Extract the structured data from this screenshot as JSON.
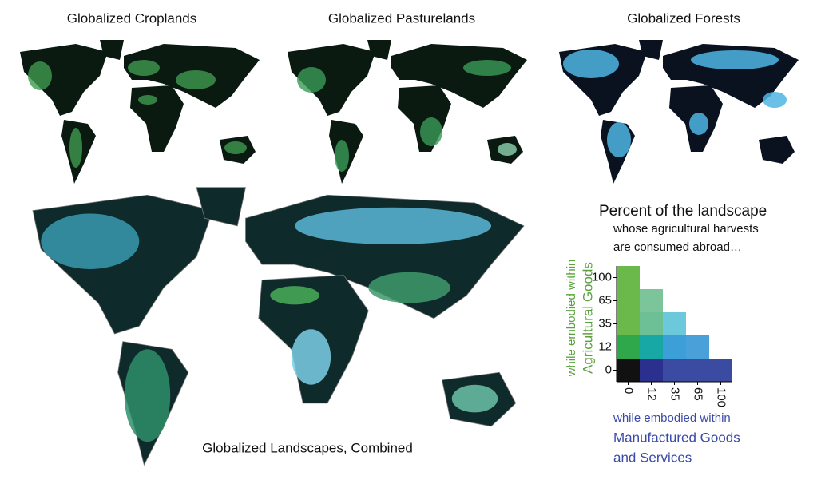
{
  "panels": [
    {
      "title": "Globalized Croplands"
    },
    {
      "title": "Globalized Pasturelands"
    },
    {
      "title": "Globalized Forests"
    },
    {
      "title": "Globalized Landscapes, Combined"
    }
  ],
  "legend": {
    "title": "Percent of the landscape",
    "subtitle": [
      "whose agricultural harvests",
      "are consumed abroad…"
    ],
    "y_label": [
      "while embodied within",
      "Agricultural Goods"
    ],
    "y_label_color": "#5aa33c",
    "x_label": [
      "while embodied within",
      "Manufactured Goods",
      "and Services"
    ],
    "x_label_color": "#3a4aa8",
    "yticks": [
      0,
      12,
      35,
      65,
      100
    ],
    "xticks": [
      0,
      12,
      35,
      65,
      100
    ],
    "cell_colors": [
      [
        "#111111",
        "#2b2f8e",
        "#3b4ba2",
        "#3b4ba2",
        "#3b4ba2"
      ],
      [
        "#2ea84a",
        "#17a8a6",
        "#3d9fd8",
        "#4aa0d8"
      ],
      [
        "#6ab94a",
        "#6dbf95",
        "#6cc9dc"
      ],
      [
        "#6ab94a",
        "#7cc59a"
      ],
      [
        "#6ab94a"
      ]
    ]
  }
}
